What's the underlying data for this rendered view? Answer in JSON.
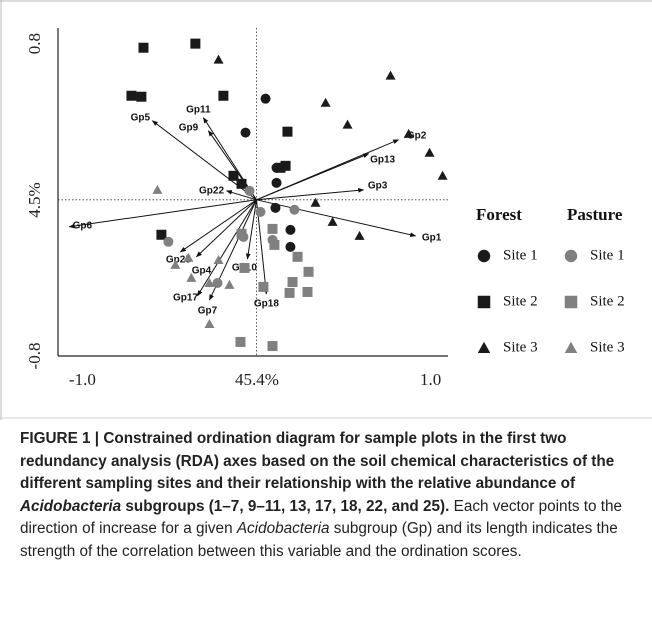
{
  "chart_data": {
    "type": "biplot",
    "xlabel": "45.4%",
    "ylabel": "4.5%",
    "xlim": [
      -1.14,
      1.1
    ],
    "ylim": [
      -0.8,
      0.88
    ],
    "xticks": [
      {
        "value": -1.0,
        "label": "-1.0"
      },
      {
        "value": 1.0,
        "label": "1.0"
      }
    ],
    "yticks": [
      -0.8,
      0.8
    ],
    "series": [
      {
        "group": "Forest",
        "name": "Site 1",
        "shape": "circle",
        "color": "#1a1a1a",
        "x": [
          0.052,
          -0.063,
          0.115,
          0.115,
          0.109,
          0.195,
          0.195
        ],
        "values": [
          0.518,
          0.344,
          0.164,
          0.087,
          -0.041,
          -0.154,
          -0.241
        ]
      },
      {
        "group": "Forest",
        "name": "Site 2",
        "shape": "square",
        "color": "#1a1a1a",
        "x": [
          -0.649,
          -0.351,
          -0.718,
          -0.661,
          -0.19,
          0.178,
          0.167,
          0.138,
          -0.132,
          -0.086,
          -0.546
        ],
        "values": [
          0.779,
          0.8,
          0.533,
          0.528,
          0.533,
          0.349,
          0.174,
          0.164,
          0.123,
          0.082,
          -0.179
        ]
      },
      {
        "group": "Forest",
        "name": "Site 3",
        "shape": "triangle",
        "color": "#1a1a1a",
        "x": [
          -0.218,
          0.77,
          0.397,
          0.523,
          0.874,
          0.994,
          1.069,
          0.339,
          0.437,
          0.592
        ],
        "values": [
          0.718,
          0.636,
          0.497,
          0.385,
          0.338,
          0.241,
          0.123,
          -0.015,
          -0.113,
          -0.185
        ]
      },
      {
        "group": "Pasture",
        "name": "Site 1",
        "shape": "circle",
        "color": "#808080",
        "x": [
          -0.04,
          0.023,
          0.218,
          -0.075,
          -0.506,
          -0.224,
          0.092
        ],
        "values": [
          0.046,
          -0.062,
          -0.051,
          -0.19,
          -0.215,
          -0.426,
          -0.205
        ]
      },
      {
        "group": "Pasture",
        "name": "Site 2",
        "shape": "square",
        "color": "#808080",
        "x": [
          -0.086,
          -0.069,
          0.092,
          0.103,
          0.236,
          0.299,
          0.207,
          0.293,
          0.19,
          0.04,
          -0.092,
          0.092
        ],
        "values": [
          -0.174,
          -0.349,
          -0.149,
          -0.231,
          -0.292,
          -0.369,
          -0.421,
          -0.472,
          -0.477,
          -0.446,
          -0.728,
          -0.749
        ]
      },
      {
        "group": "Pasture",
        "name": "Site 3",
        "shape": "triangle",
        "color": "#808080",
        "x": [
          -0.569,
          -0.466,
          -0.391,
          -0.374,
          -0.27,
          -0.155,
          -0.27,
          -0.218
        ],
        "values": [
          0.051,
          -0.333,
          -0.297,
          -0.4,
          -0.426,
          -0.436,
          -0.636,
          -0.308
        ]
      }
    ],
    "vectors": [
      {
        "name": "Gp2",
        "x": 0.816,
        "y": 0.308
      },
      {
        "name": "Gp13",
        "x": 0.644,
        "y": 0.236
      },
      {
        "name": "Gp3",
        "x": 0.615,
        "y": 0.051
      },
      {
        "name": "Gp1",
        "x": 0.914,
        "y": -0.185
      },
      {
        "name": "Gp18",
        "x": 0.057,
        "y": -0.482
      },
      {
        "name": "Gp10",
        "x": -0.052,
        "y": -0.303
      },
      {
        "name": "Gp4",
        "x": -0.345,
        "y": -0.292
      },
      {
        "name": "Gp25",
        "x": -0.437,
        "y": -0.267
      },
      {
        "name": "Gp17",
        "x": -0.339,
        "y": -0.492
      },
      {
        "name": "Gp7",
        "x": -0.27,
        "y": -0.513
      },
      {
        "name": "Gp6",
        "x": -1.075,
        "y": -0.138
      },
      {
        "name": "Gp22",
        "x": -0.172,
        "y": 0.046
      },
      {
        "name": "Gp9",
        "x": -0.276,
        "y": 0.354
      },
      {
        "name": "Gp11",
        "x": -0.305,
        "y": 0.421
      },
      {
        "name": "Gp5",
        "x": -0.598,
        "y": 0.405
      }
    ]
  },
  "caption_segments": [
    {
      "text": "FIGURE 1 | Constrained ordination diagram for sample plots in the first two redundancy analysis (RDA) axes based on the soil chemical characteristics of the different sampling sites and their relationship with the relative abundance of ",
      "style": "bold"
    },
    {
      "text": "Acidobacteria",
      "style": "bold-italic"
    },
    {
      "text": " subgroups (1–7, 9–11, 13, 17, 18, 22, and 25).",
      "style": "bold"
    },
    {
      "text": " Each vector points to the direction of increase for a given ",
      "style": "normal"
    },
    {
      "text": "Acidobacteria",
      "style": "italic"
    },
    {
      "text": " subgroup (Gp) and its length indicates the strength of the correlation between this variable and the ordination scores.",
      "style": "normal"
    }
  ]
}
